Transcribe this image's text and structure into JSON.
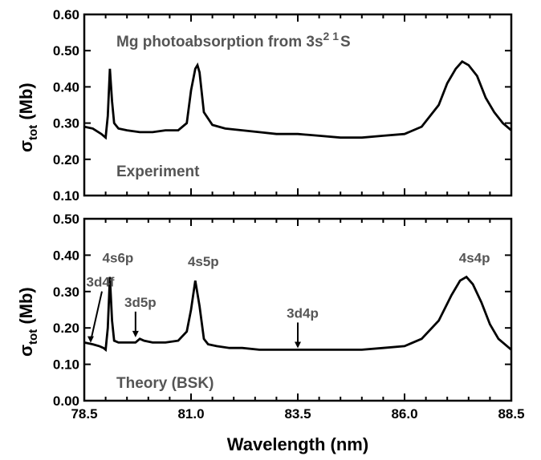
{
  "chart_data": [
    {
      "type": "line",
      "panel": "top",
      "title": "Mg photoabsorption from 3s",
      "title_sup": "2 1",
      "title_suffix": "S",
      "label": "Experiment",
      "ylabel": "σ",
      "ylabel_sub": "tot",
      "ylabel_unit": " (Mb)",
      "xlim": [
        78.5,
        88.5
      ],
      "ylim": [
        0.1,
        0.6
      ],
      "yticks": [
        "0.10",
        "0.20",
        "0.30",
        "0.40",
        "0.50",
        "0.60"
      ],
      "series": [
        {
          "x": [
            78.5,
            78.7,
            78.9,
            79.0,
            79.05,
            79.1,
            79.15,
            79.2,
            79.3,
            79.5,
            79.8,
            80.1,
            80.4,
            80.7,
            80.9,
            81.0,
            81.1,
            81.15,
            81.2,
            81.3,
            81.5,
            81.8,
            82.2,
            82.6,
            83.0,
            83.5,
            84.0,
            84.5,
            85.0,
            85.5,
            86.0,
            86.4,
            86.8,
            87.0,
            87.2,
            87.35,
            87.5,
            87.7,
            87.9,
            88.1,
            88.3,
            88.5
          ],
          "y": [
            0.29,
            0.285,
            0.27,
            0.26,
            0.32,
            0.45,
            0.36,
            0.3,
            0.285,
            0.28,
            0.275,
            0.275,
            0.28,
            0.28,
            0.3,
            0.39,
            0.45,
            0.46,
            0.44,
            0.33,
            0.295,
            0.285,
            0.28,
            0.275,
            0.27,
            0.27,
            0.265,
            0.26,
            0.26,
            0.265,
            0.27,
            0.29,
            0.35,
            0.41,
            0.45,
            0.47,
            0.46,
            0.43,
            0.37,
            0.33,
            0.3,
            0.28
          ]
        }
      ]
    },
    {
      "type": "line",
      "panel": "bottom",
      "label": "Theory (BSK)",
      "xlabel": "Wavelength (nm)",
      "ylabel": "σ",
      "ylabel_sub": "tot",
      "ylabel_unit": " (Mb)",
      "xlim": [
        78.5,
        88.5
      ],
      "ylim": [
        0.0,
        0.5
      ],
      "yticks": [
        "0.00",
        "0.10",
        "0.20",
        "0.30",
        "0.40",
        "0.50"
      ],
      "xticks": [
        "78.5",
        "81.0",
        "83.5",
        "86.0",
        "88.5"
      ],
      "series": [
        {
          "x": [
            78.5,
            78.7,
            78.85,
            78.95,
            79.0,
            79.05,
            79.1,
            79.15,
            79.2,
            79.3,
            79.5,
            79.7,
            79.8,
            79.9,
            80.1,
            80.4,
            80.7,
            80.9,
            81.0,
            81.1,
            81.2,
            81.3,
            81.4,
            81.6,
            81.9,
            82.2,
            82.6,
            83.0,
            83.5,
            84.0,
            84.5,
            85.0,
            85.5,
            86.0,
            86.4,
            86.8,
            87.1,
            87.3,
            87.45,
            87.6,
            87.8,
            88.0,
            88.2,
            88.5
          ],
          "y": [
            0.16,
            0.155,
            0.15,
            0.145,
            0.14,
            0.2,
            0.34,
            0.22,
            0.165,
            0.16,
            0.16,
            0.16,
            0.17,
            0.165,
            0.16,
            0.16,
            0.165,
            0.19,
            0.25,
            0.33,
            0.26,
            0.17,
            0.155,
            0.15,
            0.145,
            0.145,
            0.14,
            0.14,
            0.14,
            0.14,
            0.14,
            0.14,
            0.145,
            0.15,
            0.17,
            0.22,
            0.29,
            0.33,
            0.34,
            0.32,
            0.27,
            0.21,
            0.17,
            0.14
          ]
        }
      ],
      "annotations": [
        {
          "text": "3d4f",
          "x": 78.65,
          "y": 0.155,
          "arrow": true
        },
        {
          "text": "4s6p",
          "x": 79.1,
          "y": 0.34,
          "arrow": false
        },
        {
          "text": "3d5p",
          "x": 79.7,
          "y": 0.17,
          "arrow": true
        },
        {
          "text": "4s5p",
          "x": 81.1,
          "y": 0.33,
          "arrow": false
        },
        {
          "text": "3d4p",
          "x": 83.5,
          "y": 0.14,
          "arrow": true
        },
        {
          "text": "4s4p",
          "x": 87.45,
          "y": 0.34,
          "arrow": false
        }
      ]
    }
  ]
}
